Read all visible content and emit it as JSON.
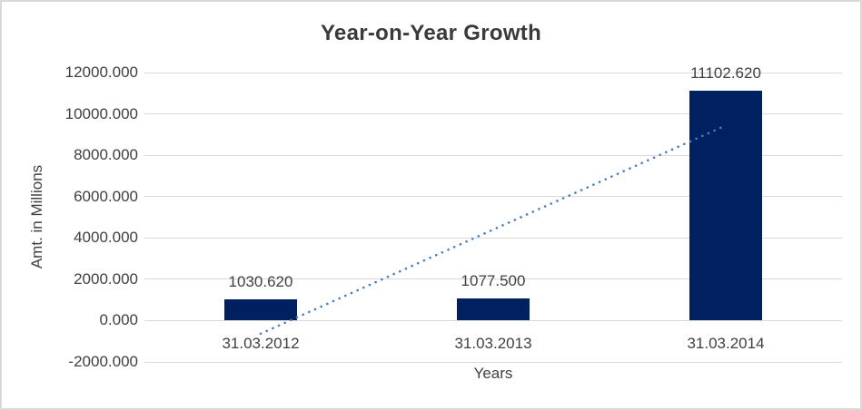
{
  "window": {
    "background": "#ffffff",
    "border_color": "#d9d9d9"
  },
  "chart_data": {
    "type": "bar",
    "title": "Year-on-Year Growth",
    "xlabel": "Years",
    "ylabel": "Amt. in Millions",
    "categories": [
      "31.03.2012",
      "31.03.2013",
      "31.03.2014"
    ],
    "values": [
      1030.62,
      1077.5,
      11102.62
    ],
    "data_labels": [
      "1030.620",
      "1077.500",
      "11102.620"
    ],
    "ylim": [
      -2000,
      12000
    ],
    "y_ticks": [
      -2000,
      0,
      2000,
      4000,
      6000,
      8000,
      10000,
      12000
    ],
    "y_tick_labels": [
      "-2000.000",
      "0.000",
      "2000.000",
      "4000.000",
      "6000.000",
      "8000.000",
      "10000.000",
      "12000.000"
    ],
    "grid": true,
    "legend": "none",
    "bar_color": "#002060",
    "grid_color": "#d9d9d9",
    "text_color": "#404040",
    "title_color": "#3a3a3a",
    "trendline": {
      "type": "linear",
      "style": "dotted",
      "color": "#4a7ebb",
      "start_value": -632.42,
      "end_value": 9439.58
    }
  }
}
